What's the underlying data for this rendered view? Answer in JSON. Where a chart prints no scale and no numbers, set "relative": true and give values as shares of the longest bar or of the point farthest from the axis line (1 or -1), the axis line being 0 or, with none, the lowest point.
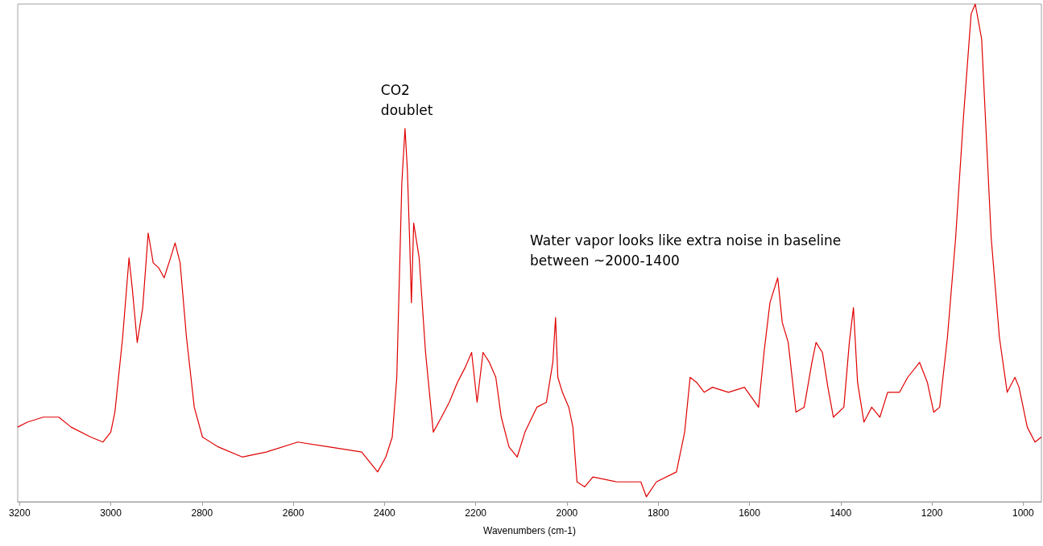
{
  "chart_data": {
    "type": "line",
    "relative": true,
    "xlabel": "Wavenumbers (cm-1)",
    "color": "#e00000",
    "marker": "none",
    "xlim": [
      3204,
      960
    ],
    "xticks": [
      3200,
      3000,
      2800,
      2600,
      2400,
      2200,
      2000,
      1800,
      1600,
      1400,
      1200,
      1000
    ],
    "annotations": [
      {
        "text": "CO2\ndoublet",
        "x": 2355,
        "y": 0.75
      },
      "Water vapor looks like extra noise in baseline\nbetween ~2000-1400"
    ],
    "x": [
      3204,
      3183,
      3148,
      3114,
      3087,
      3044,
      3017,
      3000,
      2991,
      2974,
      2960,
      2953,
      2942,
      2930,
      2918,
      2907,
      2895,
      2883,
      2869,
      2859,
      2848,
      2834,
      2817,
      2799,
      2764,
      2712,
      2659,
      2590,
      2520,
      2450,
      2415,
      2397,
      2383,
      2373,
      2362,
      2355,
      2350,
      2345,
      2341,
      2336,
      2324,
      2310,
      2293,
      2275,
      2258,
      2240,
      2223,
      2209,
      2197,
      2184,
      2170,
      2156,
      2144,
      2127,
      2109,
      2092,
      2066,
      2045,
      2031,
      2025,
      2020,
      2010,
      1996,
      1987,
      1978,
      1961,
      1943,
      1891,
      1838,
      1826,
      1804,
      1760,
      1742,
      1730,
      1716,
      1699,
      1681,
      1646,
      1611,
      1580,
      1568,
      1555,
      1538,
      1528,
      1515,
      1498,
      1480,
      1463,
      1454,
      1440,
      1428,
      1416,
      1393,
      1381,
      1372,
      1363,
      1349,
      1332,
      1314,
      1297,
      1271,
      1253,
      1227,
      1210,
      1196,
      1183,
      1166,
      1148,
      1131,
      1114,
      1105,
      1091,
      1070,
      1052,
      1035,
      1018,
      1009,
      991,
      974,
      960
    ],
    "values": [
      0.15,
      0.16,
      0.17,
      0.17,
      0.15,
      0.13,
      0.12,
      0.14,
      0.18,
      0.33,
      0.49,
      0.43,
      0.32,
      0.39,
      0.54,
      0.48,
      0.47,
      0.45,
      0.49,
      0.52,
      0.48,
      0.33,
      0.19,
      0.13,
      0.11,
      0.09,
      0.1,
      0.12,
      0.11,
      0.1,
      0.06,
      0.09,
      0.13,
      0.25,
      0.64,
      0.75,
      0.67,
      0.53,
      0.4,
      0.56,
      0.49,
      0.3,
      0.14,
      0.17,
      0.2,
      0.24,
      0.27,
      0.3,
      0.2,
      0.3,
      0.28,
      0.25,
      0.17,
      0.11,
      0.09,
      0.14,
      0.19,
      0.2,
      0.28,
      0.37,
      0.25,
      0.22,
      0.19,
      0.15,
      0.04,
      0.03,
      0.05,
      0.04,
      0.04,
      0.01,
      0.04,
      0.06,
      0.14,
      0.25,
      0.24,
      0.22,
      0.23,
      0.22,
      0.23,
      0.19,
      0.3,
      0.4,
      0.45,
      0.36,
      0.32,
      0.18,
      0.19,
      0.28,
      0.32,
      0.3,
      0.23,
      0.17,
      0.19,
      0.32,
      0.39,
      0.24,
      0.16,
      0.19,
      0.17,
      0.22,
      0.22,
      0.25,
      0.28,
      0.24,
      0.18,
      0.19,
      0.33,
      0.53,
      0.77,
      0.98,
      1,
      0.93,
      0.53,
      0.33,
      0.22,
      0.25,
      0.23,
      0.15,
      0.12,
      0.13
    ]
  }
}
